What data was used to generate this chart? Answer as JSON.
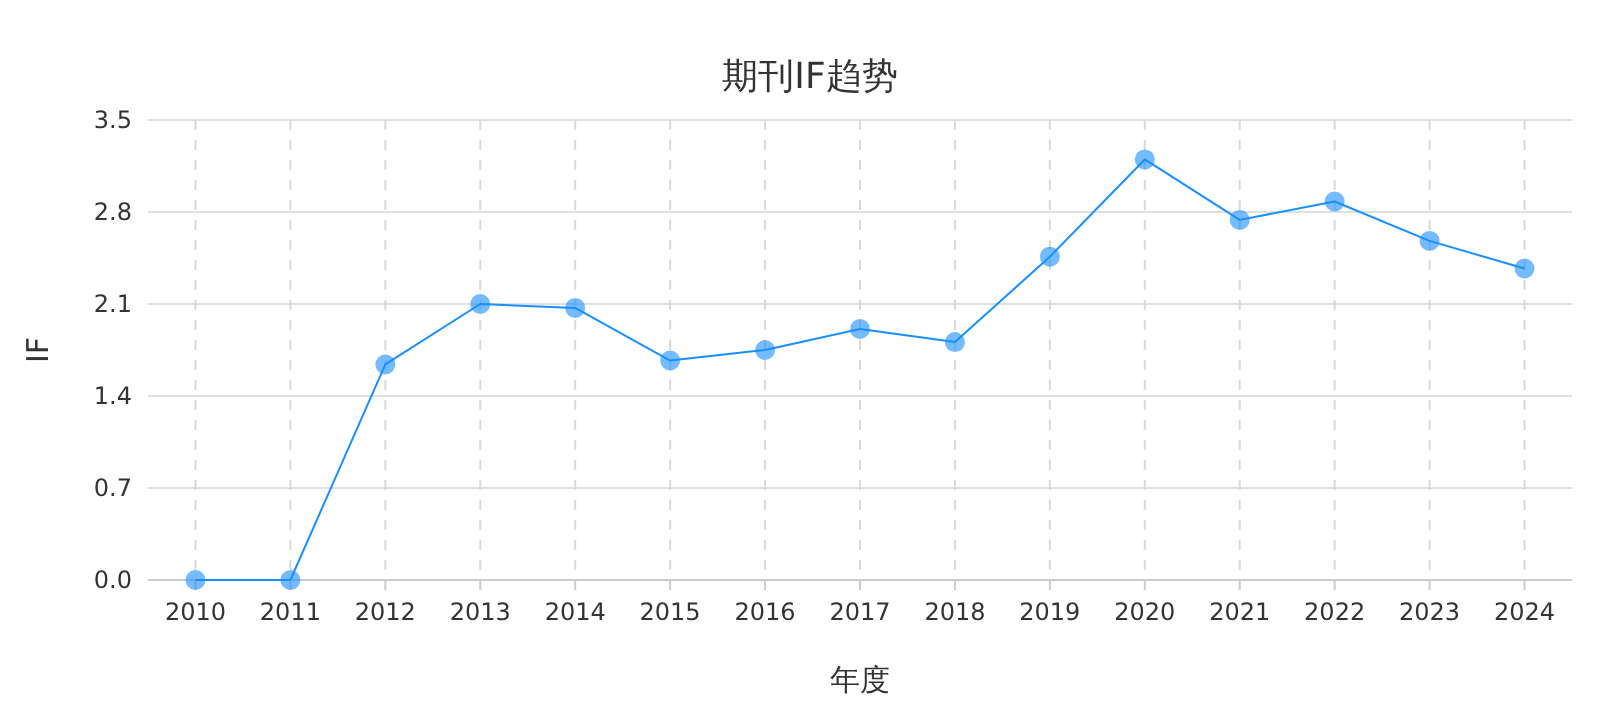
{
  "chart_data": {
    "type": "line",
    "title": "期刊IF趋势",
    "xlabel": "年度",
    "ylabel": "IF",
    "categories": [
      "2010",
      "2011",
      "2012",
      "2013",
      "2014",
      "2015",
      "2016",
      "2017",
      "2018",
      "2019",
      "2020",
      "2021",
      "2022",
      "2023",
      "2024"
    ],
    "series": [
      {
        "color": "#1890ff",
        "values": [
          0,
          0,
          1.64,
          2.1,
          2.07,
          1.67,
          1.75,
          1.91,
          1.81,
          2.46,
          3.2,
          2.74,
          2.88,
          2.58,
          2.37
        ]
      }
    ],
    "ylim": [
      0,
      3.5
    ],
    "yticks": [
      {
        "value": 0,
        "label": "0.0"
      },
      0.7,
      1.4,
      2.1,
      2.8,
      3.5
    ],
    "grid": true,
    "marker": "circle",
    "line_style": "solid"
  }
}
